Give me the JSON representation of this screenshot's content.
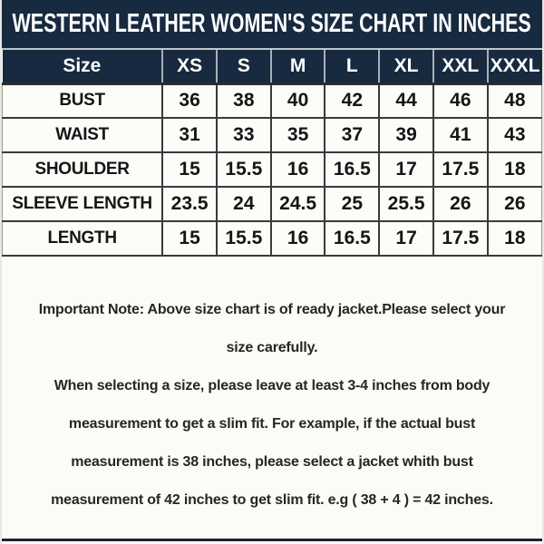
{
  "title": "WESTERN LEATHER WOMEN'S SIZE CHART IN INCHES",
  "chart_data": {
    "type": "table",
    "title": "WESTERN LEATHER WOMEN'S SIZE CHART IN INCHES",
    "unit": "inches",
    "columns": [
      "Size",
      "XS",
      "S",
      "M",
      "L",
      "XL",
      "XXL",
      "XXXL"
    ],
    "rows": [
      {
        "label": "BUST",
        "values": [
          36,
          38,
          40,
          42,
          44,
          46,
          48
        ]
      },
      {
        "label": "WAIST",
        "values": [
          31,
          33,
          35,
          37,
          39,
          41,
          43
        ]
      },
      {
        "label": "SHOULDER",
        "values": [
          15,
          15.5,
          16,
          16.5,
          17,
          17.5,
          18
        ]
      },
      {
        "label": "SLEEVE LENGTH",
        "values": [
          23.5,
          24,
          24.5,
          25,
          25.5,
          26,
          26
        ]
      },
      {
        "label": "LENGTH",
        "values": [
          15,
          15.5,
          16,
          16.5,
          17,
          17.5,
          18
        ]
      }
    ]
  },
  "notes": {
    "lines": [
      "Important Note: Above size chart is of ready jacket.Please select your",
      "size carefully.",
      "When selecting a size, please leave at least 3-4 inches from body",
      "measurement to get a slim fit. For example, if the actual bust",
      "measurement is 38 inches, please select a jacket whith bust",
      "measurement of 42 inches to get slim fit. e.g ( 38 + 4 ) = 42 inches."
    ]
  },
  "colors": {
    "header_navy": "#172a40",
    "header_text": "#ffffff",
    "cell_bg": "#fcfcf9",
    "cell_border": "#3a3a3a",
    "body_text": "#262626",
    "bottom_rule": "#23232b"
  }
}
